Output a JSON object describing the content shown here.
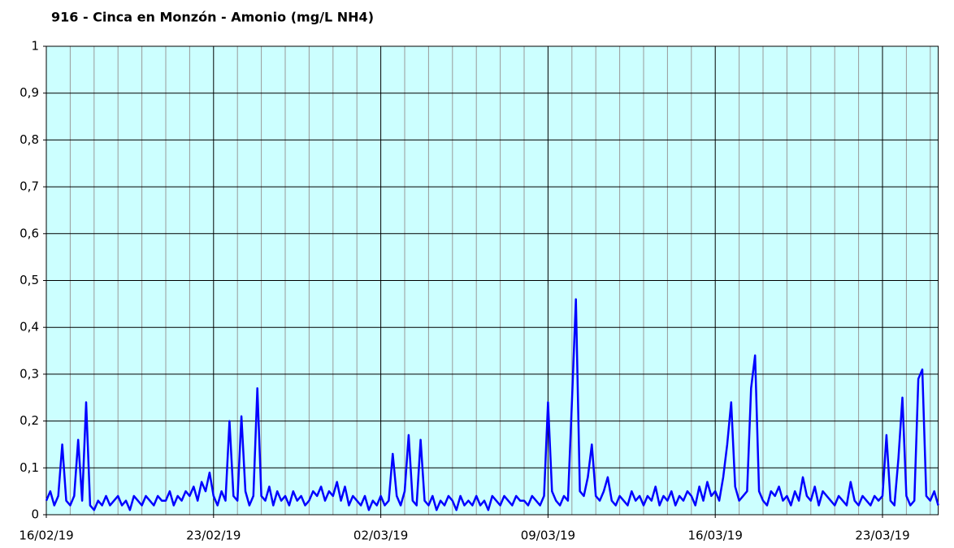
{
  "chart_data": {
    "type": "line",
    "title": "916 - Cinca en Monzón - Amonio (mg/L NH4)",
    "categories": [
      "16/02/19",
      null,
      null,
      null,
      null,
      null,
      null,
      null,
      null,
      null,
      null,
      null,
      null,
      null,
      null,
      null,
      null,
      null,
      null,
      null,
      null,
      null,
      null,
      null,
      null,
      null,
      null,
      null,
      null,
      null,
      null,
      null,
      null,
      null,
      null,
      null,
      null,
      null,
      null,
      null,
      null,
      null,
      "23/02/19",
      null,
      null,
      null,
      null,
      null,
      null,
      null,
      null,
      null,
      null,
      null,
      null,
      null,
      null,
      null,
      null,
      null,
      null,
      null,
      null,
      null,
      null,
      null,
      null,
      null,
      null,
      null,
      null,
      null,
      null,
      null,
      null,
      null,
      null,
      null,
      null,
      null,
      null,
      null,
      null,
      null,
      "02/03/19",
      null,
      null,
      null,
      null,
      null,
      null,
      null,
      null,
      null,
      null,
      null,
      null,
      null,
      null,
      null,
      null,
      null,
      null,
      null,
      null,
      null,
      null,
      null,
      null,
      null,
      null,
      null,
      null,
      null,
      null,
      null,
      null,
      null,
      null,
      null,
      null,
      null,
      null,
      null,
      null,
      null,
      "09/03/19",
      null,
      null,
      null,
      null,
      null,
      null,
      null,
      null,
      null,
      null,
      null,
      null,
      null,
      null,
      null,
      null,
      null,
      null,
      null,
      null,
      null,
      null,
      null,
      null,
      null,
      null,
      null,
      null,
      null,
      null,
      null,
      null,
      null,
      null,
      null,
      null,
      null,
      null,
      null,
      null,
      null,
      "16/03/19",
      null,
      null,
      null,
      null,
      null,
      null,
      null,
      null,
      null,
      null,
      null,
      null,
      null,
      null,
      null,
      null,
      null,
      null,
      null,
      null,
      null,
      null,
      null,
      null,
      null,
      null,
      null,
      null,
      null,
      null,
      null,
      null,
      null,
      null,
      null,
      null,
      null,
      null,
      null,
      null,
      null,
      "23/03/19",
      null,
      null,
      null,
      null,
      null,
      null,
      null,
      null,
      null,
      null,
      null,
      null,
      null,
      null
    ],
    "series": [
      {
        "color": "#0000ff",
        "values": [
          0.03,
          0.05,
          0.02,
          0.04,
          0.15,
          0.03,
          0.02,
          0.04,
          0.16,
          0.03,
          0.24,
          0.02,
          0.01,
          0.03,
          0.02,
          0.04,
          0.02,
          0.03,
          0.04,
          0.02,
          0.03,
          0.01,
          0.04,
          0.03,
          0.02,
          0.04,
          0.03,
          0.02,
          0.04,
          0.03,
          0.03,
          0.05,
          0.02,
          0.04,
          0.03,
          0.05,
          0.04,
          0.06,
          0.03,
          0.07,
          0.05,
          0.09,
          0.04,
          0.02,
          0.05,
          0.03,
          0.2,
          0.04,
          0.03,
          0.21,
          0.05,
          0.02,
          0.04,
          0.27,
          0.04,
          0.03,
          0.06,
          0.02,
          0.05,
          0.03,
          0.04,
          0.02,
          0.05,
          0.03,
          0.04,
          0.02,
          0.03,
          0.05,
          0.04,
          0.06,
          0.03,
          0.05,
          0.04,
          0.07,
          0.03,
          0.06,
          0.02,
          0.04,
          0.03,
          0.02,
          0.04,
          0.01,
          0.03,
          0.02,
          0.04,
          0.02,
          0.03,
          0.13,
          0.04,
          0.02,
          0.05,
          0.17,
          0.03,
          0.02,
          0.16,
          0.03,
          0.02,
          0.04,
          0.01,
          0.03,
          0.02,
          0.04,
          0.03,
          0.01,
          0.04,
          0.02,
          0.03,
          0.02,
          0.04,
          0.02,
          0.03,
          0.01,
          0.04,
          0.03,
          0.02,
          0.04,
          0.03,
          0.02,
          0.04,
          0.03,
          0.03,
          0.02,
          0.04,
          0.03,
          0.02,
          0.04,
          0.24,
          0.05,
          0.03,
          0.02,
          0.04,
          0.03,
          0.24,
          0.46,
          0.05,
          0.04,
          0.08,
          0.15,
          0.04,
          0.03,
          0.05,
          0.08,
          0.03,
          0.02,
          0.04,
          0.03,
          0.02,
          0.05,
          0.03,
          0.04,
          0.02,
          0.04,
          0.03,
          0.06,
          0.02,
          0.04,
          0.03,
          0.05,
          0.02,
          0.04,
          0.03,
          0.05,
          0.04,
          0.02,
          0.06,
          0.03,
          0.07,
          0.04,
          0.05,
          0.03,
          0.08,
          0.15,
          0.24,
          0.06,
          0.03,
          0.04,
          0.05,
          0.27,
          0.34,
          0.05,
          0.03,
          0.02,
          0.05,
          0.04,
          0.06,
          0.03,
          0.04,
          0.02,
          0.05,
          0.03,
          0.08,
          0.04,
          0.03,
          0.06,
          0.02,
          0.05,
          0.04,
          0.03,
          0.02,
          0.04,
          0.03,
          0.02,
          0.07,
          0.03,
          0.02,
          0.04,
          0.03,
          0.02,
          0.04,
          0.03,
          0.04,
          0.17,
          0.03,
          0.02,
          0.12,
          0.25,
          0.04,
          0.02,
          0.03,
          0.29,
          0.31,
          0.04,
          0.03,
          0.05,
          0.02
        ]
      }
    ],
    "ylim": [
      0,
      1
    ],
    "yticks": [
      0,
      {
        "value": 0.1,
        "label": "0,1"
      },
      {
        "value": 0.2,
        "label": "0,2"
      },
      {
        "value": 0.3,
        "label": "0,3"
      },
      {
        "value": 0.4,
        "label": "0,4"
      },
      {
        "value": 0.5,
        "label": "0,5"
      },
      {
        "value": 0.6,
        "label": "0,6"
      },
      {
        "value": 0.7,
        "label": "0,7"
      },
      {
        "value": 0.8,
        "label": "0,8"
      },
      {
        "value": 0.9,
        "label": "0,9"
      },
      1
    ],
    "grid": true,
    "background": "#ccffff"
  }
}
